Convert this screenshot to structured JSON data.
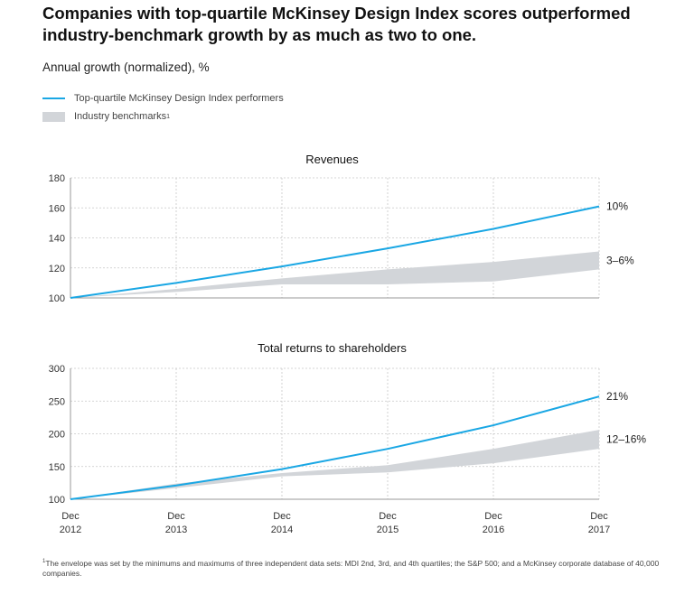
{
  "title_lines": [
    "Companies with top-quartile McKinsey Design Index scores outperformed",
    "industry-benchmark growth by as much as two to one."
  ],
  "subtitle": "Annual growth (normalized), %",
  "legend": {
    "line_label": "Top-quartile McKinsey Design Index performers",
    "band_label": "Industry benchmarks",
    "band_footnote_mark": "1"
  },
  "colors": {
    "line": "#1aa7e4",
    "band": "#d2d5d9",
    "grid": "#c8c8c8"
  },
  "footnote": {
    "mark": "1",
    "text": "The envelope was set by the minimums and maximums of three independent data sets: MDI 2nd, 3rd, and 4th quartiles; the S&P 500; and a McKinsey corporate database of 40,000 companies."
  },
  "chart_data": [
    {
      "type": "line",
      "title": "Revenues",
      "x_labels": [
        [
          "Dec",
          "2012"
        ],
        [
          "Dec",
          "2013"
        ],
        [
          "Dec",
          "2014"
        ],
        [
          "Dec",
          "2015"
        ],
        [
          "Dec",
          "2016"
        ],
        [
          "Dec",
          "2017"
        ]
      ],
      "ylim": [
        100,
        180
      ],
      "yticks": [
        100,
        120,
        140,
        160,
        180
      ],
      "series": [
        {
          "name": "Top-quartile McKinsey Design Index performers",
          "values": [
            100,
            110,
            121,
            133,
            146,
            161
          ]
        }
      ],
      "band": {
        "name": "Industry benchmarks",
        "x": [
          0,
          1,
          2,
          3,
          4,
          5
        ],
        "upper": [
          100,
          106,
          113,
          119,
          124,
          131
        ],
        "lower": [
          100,
          104,
          109,
          109,
          111,
          119
        ]
      },
      "end_labels": [
        "10%",
        "3–6%"
      ]
    },
    {
      "type": "line",
      "title": "Total returns to shareholders",
      "x_labels": [
        [
          "Dec",
          "2012"
        ],
        [
          "Dec",
          "2013"
        ],
        [
          "Dec",
          "2014"
        ],
        [
          "Dec",
          "2015"
        ],
        [
          "Dec",
          "2016"
        ],
        [
          "Dec",
          "2017"
        ]
      ],
      "ylim": [
        100,
        300
      ],
      "yticks": [
        100,
        150,
        200,
        250,
        300
      ],
      "series": [
        {
          "name": "Top-quartile McKinsey Design Index performers",
          "values": [
            100,
            121,
            146,
            177,
            213,
            257
          ]
        }
      ],
      "band": {
        "name": "Industry benchmarks",
        "x": [
          0,
          1,
          2,
          3,
          4,
          5
        ],
        "upper": [
          100,
          124,
          140,
          152,
          177,
          206
        ],
        "lower": [
          100,
          117,
          135,
          141,
          155,
          177
        ]
      },
      "end_labels": [
        "21%",
        "12–16%"
      ]
    }
  ]
}
